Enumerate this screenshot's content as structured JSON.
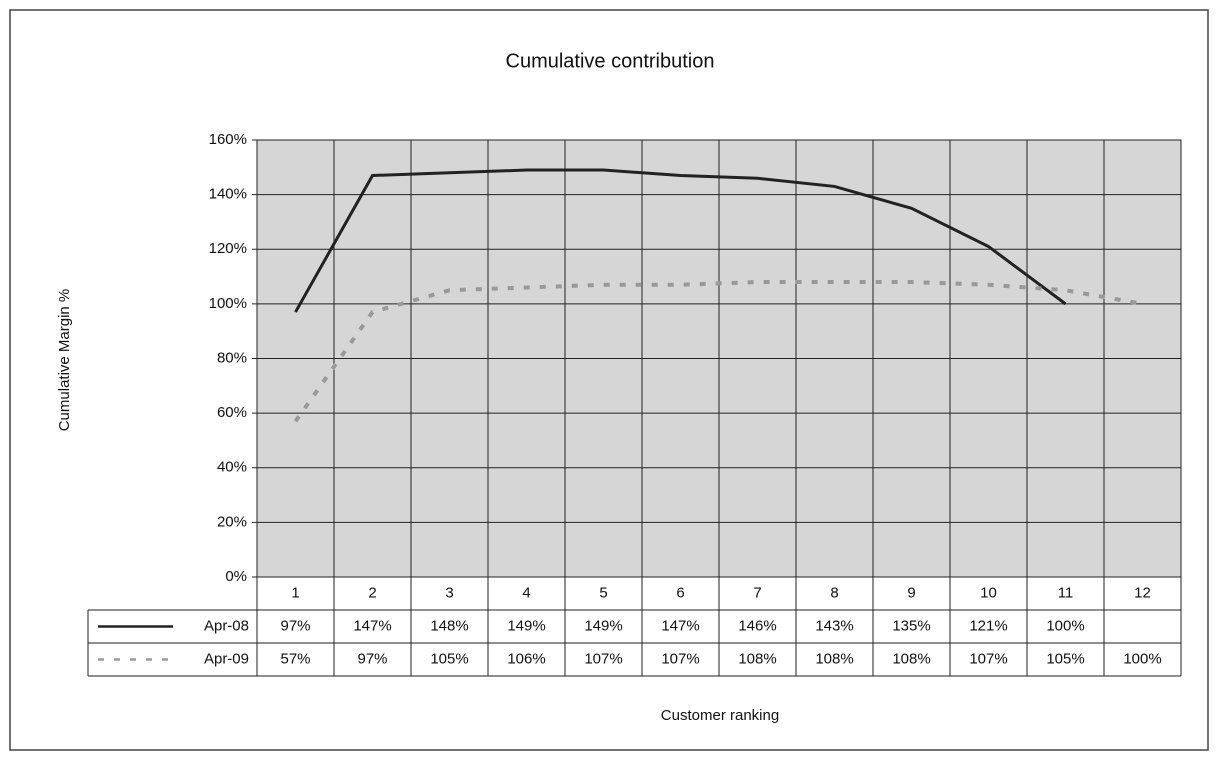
{
  "chart_data": {
    "type": "line",
    "title": "Cumulative contribution",
    "ylabel": "Cumulative Margin %",
    "xlabel": "Customer ranking",
    "categories": [
      "1",
      "2",
      "3",
      "4",
      "5",
      "6",
      "7",
      "8",
      "9",
      "10",
      "11",
      "12"
    ],
    "series": [
      {
        "name": "Apr-08",
        "color": "#222222",
        "dash": false,
        "values": [
          97,
          147,
          148,
          149,
          149,
          147,
          146,
          143,
          135,
          121,
          100,
          null
        ],
        "value_labels": [
          "97%",
          "147%",
          "148%",
          "149%",
          "149%",
          "147%",
          "146%",
          "143%",
          "135%",
          "121%",
          "100%",
          null
        ]
      },
      {
        "name": "Apr-09",
        "color": "#999999",
        "dash": true,
        "values": [
          57,
          97,
          105,
          106,
          107,
          107,
          108,
          108,
          108,
          107,
          105,
          100
        ],
        "value_labels": [
          "57%",
          "97%",
          "105%",
          "106%",
          "107%",
          "107%",
          "108%",
          "108%",
          "108%",
          "107%",
          "105%",
          "100%"
        ]
      }
    ],
    "ylim": [
      0,
      160
    ],
    "yticks": [
      {
        "value": 0,
        "label": "0%"
      },
      {
        "value": 20,
        "label": "20%"
      },
      {
        "value": 40,
        "label": "40%"
      },
      {
        "value": 60,
        "label": "60%"
      },
      {
        "value": 80,
        "label": "80%"
      },
      {
        "value": 100,
        "label": "100%"
      },
      {
        "value": 120,
        "label": "120%"
      },
      {
        "value": 140,
        "label": "140%"
      },
      {
        "value": 160,
        "label": "160%"
      }
    ],
    "grid": true
  }
}
